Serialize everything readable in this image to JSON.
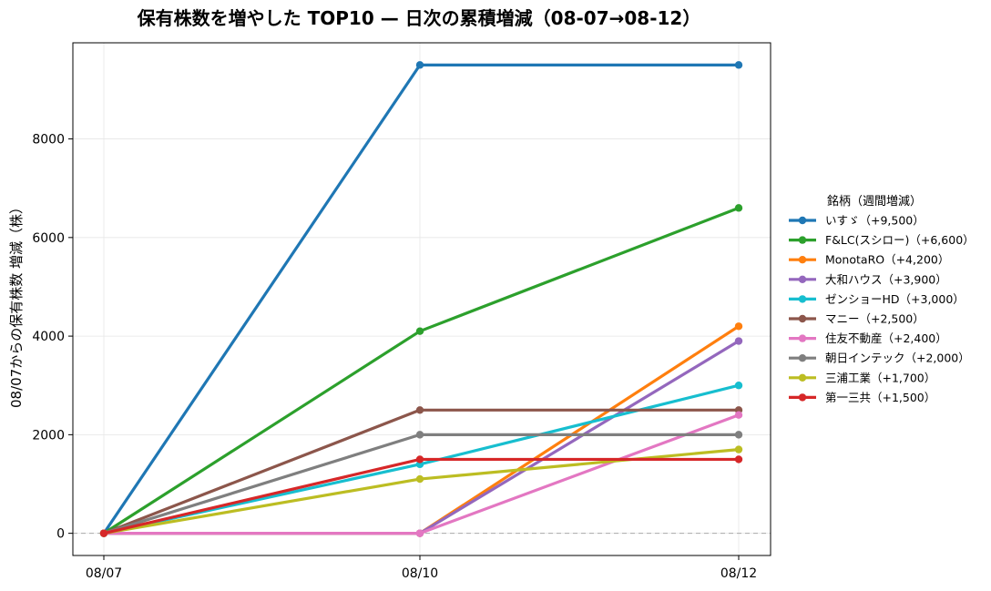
{
  "chart_data": {
    "type": "line",
    "title": "保有株数を増やした TOP10 — 日次の累積増減（08-07→08-12）",
    "xlabel": "",
    "ylabel": "08/07からの保有株数 増減（株）",
    "x": [
      "08/07",
      "08/10",
      "08/12"
    ],
    "yticks": [
      0,
      2000,
      4000,
      6000,
      8000
    ],
    "ylim": [
      -450,
      9950
    ],
    "grid": true,
    "zero_line": true,
    "legend": {
      "title": "銘柄（週間増減）",
      "placement": "right-outside"
    },
    "series": [
      {
        "name": "いすゞ（+9,500）",
        "color": "#1f77b4",
        "values": [
          0,
          9500,
          9500
        ]
      },
      {
        "name": "F&LC(スシロー)（+6,600）",
        "color": "#2ca02c",
        "values": [
          0,
          4100,
          6600
        ]
      },
      {
        "name": "MonotaRO（+4,200）",
        "color": "#ff7f0e",
        "values": [
          0,
          0,
          4200
        ]
      },
      {
        "name": "大和ハウス（+3,900）",
        "color": "#9467bd",
        "values": [
          0,
          0,
          3900
        ]
      },
      {
        "name": "ゼンショーHD（+3,000）",
        "color": "#17becf",
        "values": [
          0,
          1400,
          3000
        ]
      },
      {
        "name": "マニー（+2,500）",
        "color": "#8c564b",
        "values": [
          0,
          2500,
          2500
        ]
      },
      {
        "name": "住友不動産（+2,400）",
        "color": "#e377c2",
        "values": [
          0,
          0,
          2400
        ]
      },
      {
        "name": "朝日インテック（+2,000）",
        "color": "#7f7f7f",
        "values": [
          0,
          2000,
          2000
        ]
      },
      {
        "name": "三浦工業（+1,700）",
        "color": "#bcbd22",
        "values": [
          0,
          1100,
          1700
        ]
      },
      {
        "name": "第一三共（+1,500）",
        "color": "#d62728",
        "values": [
          0,
          1500,
          1500
        ]
      }
    ]
  }
}
